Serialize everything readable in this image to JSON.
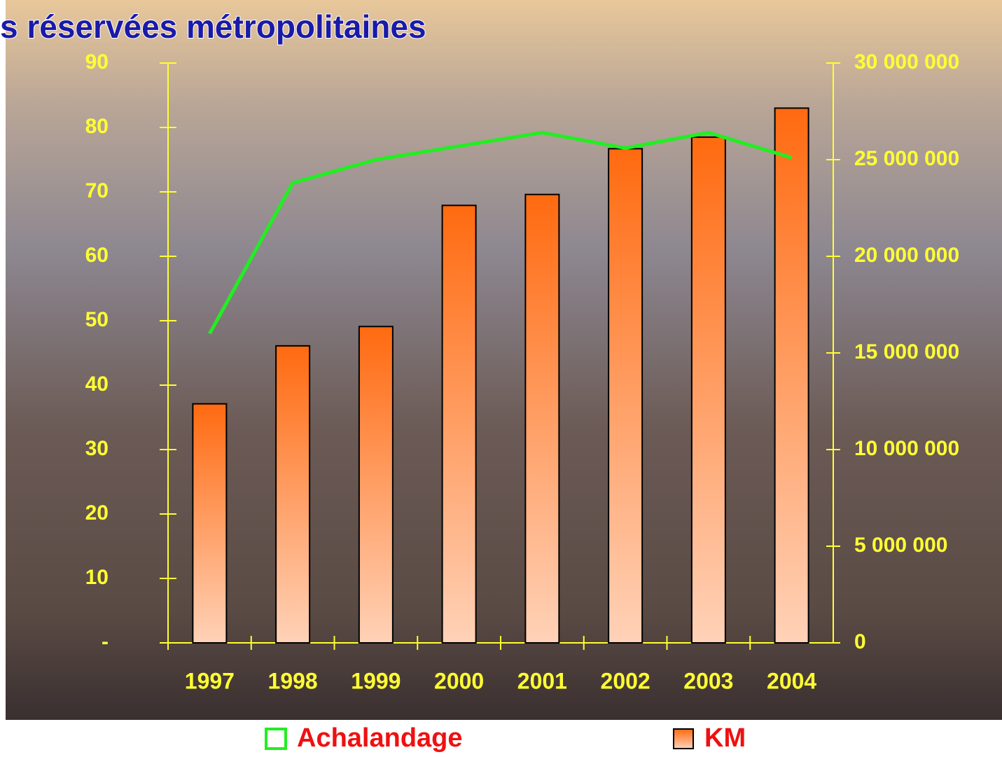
{
  "chart_data": {
    "type": "bar",
    "title": "s réservées métropolitaines",
    "categories": [
      "1997",
      "1998",
      "1999",
      "2000",
      "2001",
      "2002",
      "2003",
      "2004"
    ],
    "series": [
      {
        "name": "Achalandage",
        "color": "#22ee22",
        "type": "line",
        "axis": "y2",
        "values": [
          16000000,
          23800000,
          25000000,
          25700000,
          26400000,
          25600000,
          26400000,
          25100000
        ]
      },
      {
        "name": "KM",
        "color": "#ff6a10",
        "type": "bar",
        "values": [
          37.1,
          46.1,
          49.1,
          67.9,
          69.6,
          76.7,
          78.5,
          83.0
        ]
      }
    ],
    "ylim": [
      0,
      90
    ],
    "yticks": [
      {
        "value": 0,
        "label": "-"
      },
      10,
      20,
      30,
      40,
      50,
      60,
      70,
      80,
      90
    ],
    "y2lim": [
      0,
      30000000
    ],
    "y2ticks": [
      0,
      {
        "value": 5000000,
        "label": "5 000 000"
      },
      {
        "value": 10000000,
        "label": "10 000 000"
      },
      {
        "value": 15000000,
        "label": "15 000 000"
      },
      {
        "value": 20000000,
        "label": "20 000 000"
      },
      {
        "value": 25000000,
        "label": "25 000 000"
      },
      {
        "value": 30000000,
        "label": "30 000 000"
      }
    ]
  }
}
